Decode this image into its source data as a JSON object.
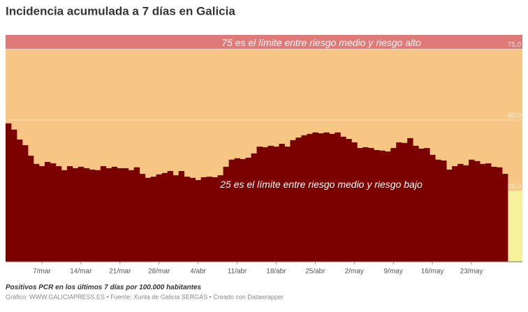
{
  "chart_data": {
    "type": "step-area",
    "title": "Incidencia acumulada a 7 días en Galicia",
    "subtitle": "Positivos PCR en los últimos 7 días por 100.000 habitantes",
    "source": "Gráfico: WWW.GALICIAPRESS.ES • Fuente: Xunta de Galicia SERGAS • Creado con Datawrapper",
    "categories": [
      null,
      null,
      null,
      null,
      null,
      null,
      "7/mar",
      null,
      null,
      null,
      null,
      null,
      null,
      "14/mar",
      null,
      null,
      null,
      null,
      null,
      null,
      "21/mar",
      null,
      null,
      null,
      null,
      null,
      null,
      "28/mar",
      null,
      null,
      null,
      null,
      null,
      null,
      "4/abr",
      null,
      null,
      null,
      null,
      null,
      null,
      "11/abr",
      null,
      null,
      null,
      null,
      null,
      null,
      "18/abr",
      null,
      null,
      null,
      null,
      null,
      null,
      "25/abr",
      null,
      null,
      null,
      null,
      null,
      null,
      "2/may",
      null,
      null,
      null,
      null,
      null,
      null,
      "9/may",
      null,
      null,
      null,
      null,
      null,
      null,
      "16/may",
      null,
      null,
      null,
      null,
      null,
      null,
      "23/may",
      null,
      null,
      null,
      null,
      null,
      null
    ],
    "values": [
      48.8,
      46.6,
      43.1,
      41.1,
      37.4,
      34.5,
      33.7,
      35.2,
      34.7,
      33.7,
      32.3,
      33.7,
      33.0,
      33.5,
      33.0,
      32.5,
      32.3,
      33.7,
      33.0,
      33.5,
      33.0,
      33.0,
      32.3,
      33.3,
      31.0,
      29.6,
      30.0,
      30.8,
      31.3,
      32.0,
      30.5,
      32.0,
      30.0,
      29.6,
      28.8,
      29.8,
      30.0,
      29.8,
      30.5,
      33.5,
      36.0,
      36.5,
      36.2,
      36.7,
      38.2,
      40.6,
      40.4,
      40.9,
      40.6,
      41.6,
      40.6,
      42.9,
      43.8,
      44.6,
      45.1,
      45.6,
      45.3,
      45.6,
      45.1,
      45.6,
      44.1,
      43.3,
      42.1,
      40.1,
      40.4,
      40.1,
      39.4,
      39.2,
      38.9,
      40.1,
      42.1,
      41.9,
      43.6,
      40.9,
      39.9,
      40.1,
      37.7,
      36.0,
      35.7,
      32.5,
      33.7,
      34.5,
      34.0,
      36.0,
      35.5,
      34.5,
      34.7,
      33.5,
      33.3,
      31.0
    ],
    "color": "#7b0000",
    "ylim": [
      0,
      80
    ],
    "yticks": [
      {
        "value": 25,
        "label": "25.0"
      },
      {
        "value": 50,
        "label": "50.0"
      },
      {
        "value": 75,
        "label": "75.0"
      }
    ],
    "grid": true,
    "bands": [
      {
        "from": 0,
        "to": 25,
        "color": "#f6f29c"
      },
      {
        "from": 25,
        "to": 75,
        "color": "#f8c684"
      },
      {
        "from": 75,
        "to": 80,
        "color": "#df7a78"
      }
    ],
    "annotations": [
      {
        "text": "75 es el límite entre riesgo medio y riesgo alto",
        "y": 75
      },
      {
        "text": "25 es el límite entre riesgo medio y riesgo bajo",
        "y": 25
      }
    ]
  }
}
